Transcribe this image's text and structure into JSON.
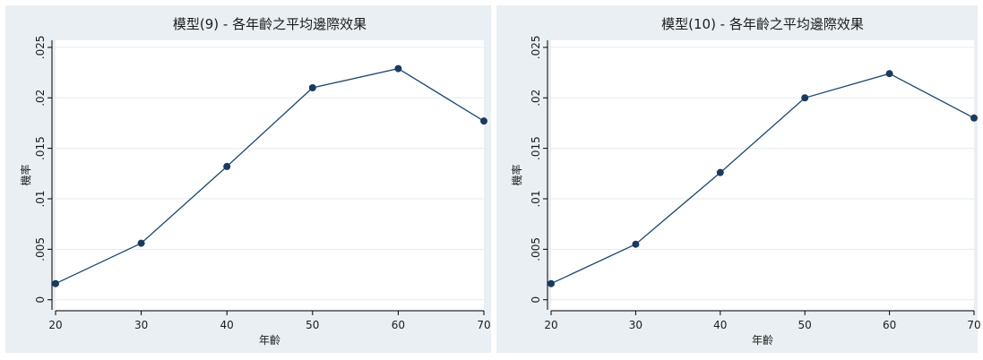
{
  "colors": {
    "panel_background": "#e9eff3",
    "plot_background": "#ffffff",
    "gridline": "#e6ebee",
    "axis": "#000000",
    "text": "#1c1c1c",
    "series_line": "#1a476f",
    "marker": "#1a3a5e"
  },
  "chart_data": [
    {
      "type": "line",
      "title": "模型(9) - 各年齡之平均邊際效果",
      "xlabel": "年齡",
      "ylabel": "機率",
      "x": [
        20,
        30,
        40,
        50,
        60,
        70
      ],
      "x_tick_labels": [
        "20",
        "30",
        "40",
        "50",
        "60",
        "70"
      ],
      "y": [
        0.0016,
        0.0056,
        0.0132,
        0.021,
        0.0229,
        0.0177
      ],
      "y_ticks": [
        0,
        0.005,
        0.01,
        0.015,
        0.02,
        0.025
      ],
      "y_tick_labels": [
        "0",
        ".005",
        ".01",
        ".015",
        ".02",
        ".025"
      ],
      "xlim": [
        20,
        70
      ],
      "ylim": [
        -0.001,
        0.0257
      ],
      "grid": true,
      "markers": true
    },
    {
      "type": "line",
      "title": "模型(10) - 各年齡之平均邊際效果",
      "xlabel": "年齡",
      "ylabel": "機率",
      "x": [
        20,
        30,
        40,
        50,
        60,
        70
      ],
      "x_tick_labels": [
        "20",
        "30",
        "40",
        "50",
        "60",
        "70"
      ],
      "y": [
        0.0016,
        0.0055,
        0.0126,
        0.02,
        0.0224,
        0.018
      ],
      "y_ticks": [
        0,
        0.005,
        0.01,
        0.015,
        0.02,
        0.025
      ],
      "y_tick_labels": [
        "0",
        ".005",
        ".01",
        ".015",
        ".02",
        ".025"
      ],
      "xlim": [
        20,
        70
      ],
      "ylim": [
        -0.001,
        0.0257
      ],
      "grid": true,
      "markers": true
    }
  ]
}
